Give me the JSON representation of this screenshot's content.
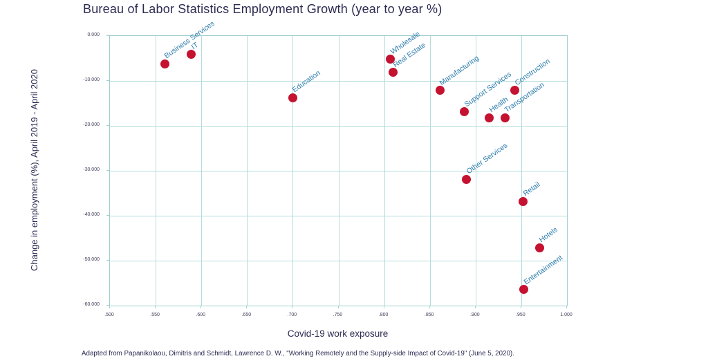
{
  "chart_data": {
    "type": "scatter",
    "title": "Bureau of Labor Statistics Employment Growth (year to year %)",
    "xlabel": "Covid-19 work exposure",
    "ylabel": "Change in employment (%), April 2019 - April 2020",
    "footnote": "Adapted from Papanikolaou, Dimitris and Schmidt, Lawrence D. W., \"Working Remotely and the Supply-side Impact of Covid-19\" (June 5, 2020).",
    "xlim": [
      0.5,
      1.0
    ],
    "ylim": [
      -60,
      0
    ],
    "grid": true,
    "legend": "none",
    "x_ticks": [
      {
        "v": 0.5,
        "label": ".500"
      },
      {
        "v": 0.55,
        "label": ".550"
      },
      {
        "v": 0.6,
        "label": ".600"
      },
      {
        "v": 0.65,
        "label": ".650"
      },
      {
        "v": 0.7,
        "label": ".700"
      },
      {
        "v": 0.75,
        "label": ".750"
      },
      {
        "v": 0.8,
        "label": ".800"
      },
      {
        "v": 0.85,
        "label": ".850"
      },
      {
        "v": 0.9,
        "label": ".900"
      },
      {
        "v": 0.95,
        "label": ".950"
      },
      {
        "v": 1.0,
        "label": "1.000"
      }
    ],
    "y_ticks": [
      {
        "v": 0,
        "label": "0.000"
      },
      {
        "v": -10,
        "label": "-10.000"
      },
      {
        "v": -20,
        "label": "-20.000"
      },
      {
        "v": -30,
        "label": "-30.000"
      },
      {
        "v": -40,
        "label": "-40.000"
      },
      {
        "v": -50,
        "label": "-50.000"
      },
      {
        "v": -60,
        "label": "-60.000"
      }
    ],
    "points": [
      {
        "label": "Business Services",
        "x": 0.56,
        "y": -6.2
      },
      {
        "label": "IT",
        "x": 0.589,
        "y": -4.1
      },
      {
        "label": "Education",
        "x": 0.7,
        "y": -13.7
      },
      {
        "label": "Wholesale",
        "x": 0.807,
        "y": -5.2
      },
      {
        "label": "Real Estate",
        "x": 0.81,
        "y": -8.1
      },
      {
        "label": "Manufacturing",
        "x": 0.861,
        "y": -12.1
      },
      {
        "label": "Support Services",
        "x": 0.888,
        "y": -16.9
      },
      {
        "label": "Health",
        "x": 0.915,
        "y": -18.2
      },
      {
        "label": "Transportation",
        "x": 0.932,
        "y": -18.2
      },
      {
        "label": "Construction",
        "x": 0.943,
        "y": -12.1
      },
      {
        "label": "Other Services",
        "x": 0.89,
        "y": -31.9
      },
      {
        "label": "Retail",
        "x": 0.952,
        "y": -36.8
      },
      {
        "label": "Hotels",
        "x": 0.97,
        "y": -47.1
      },
      {
        "label": "Entertainment",
        "x": 0.953,
        "y": -56.4
      }
    ],
    "colors": {
      "point": "#c41230",
      "point_label": "#2d7dad",
      "gridline": "#b4dcdc",
      "axis_border": "#9fcfcf",
      "title_text": "#2b2b52",
      "tick_text": "#40405c",
      "background": "#ffffff"
    }
  }
}
